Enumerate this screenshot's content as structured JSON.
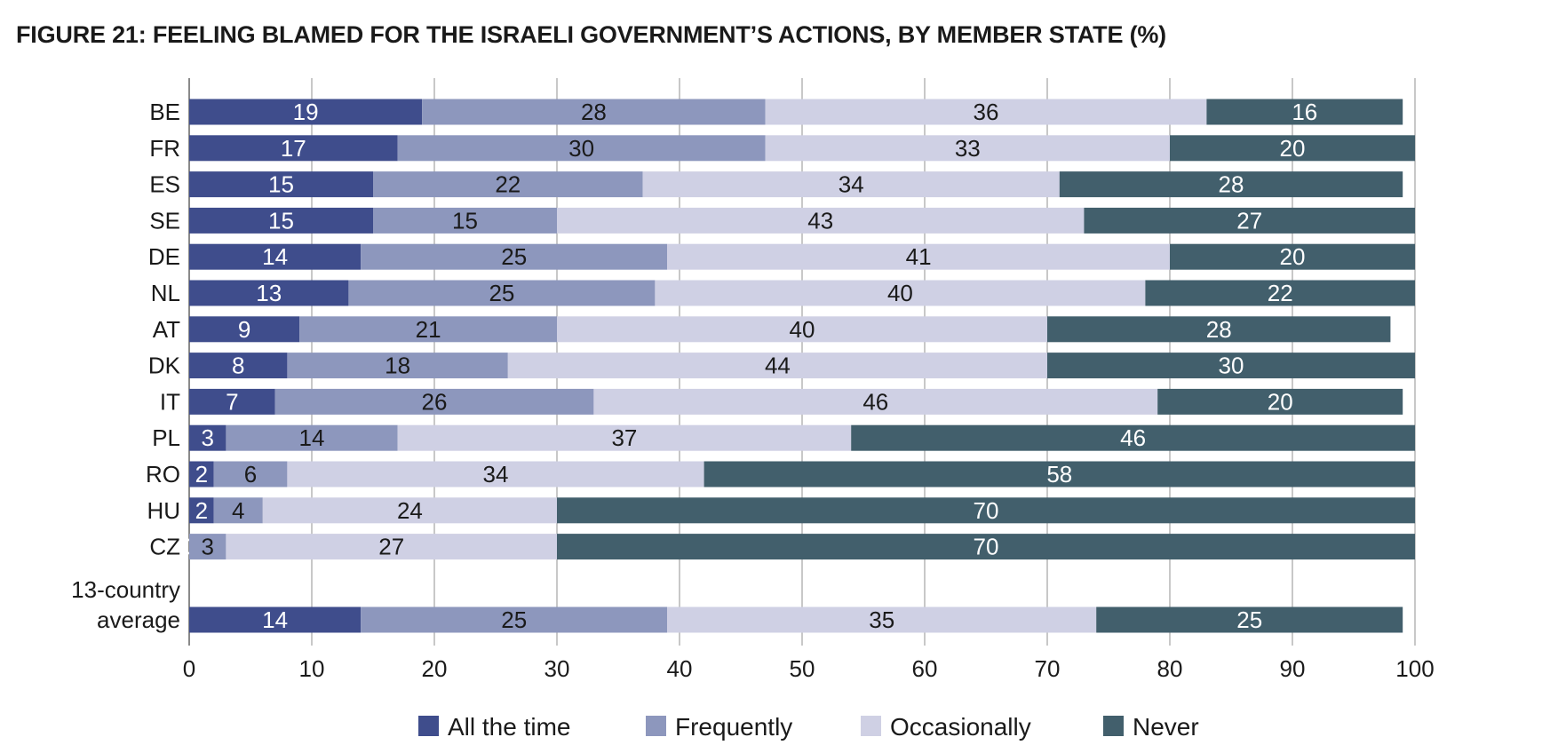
{
  "title": "FIGURE 21:   FEELING BLAMED FOR THE ISRAELI GOVERNMENT’S ACTIONS, BY MEMBER STATE (%)",
  "chart_data": {
    "type": "bar",
    "orientation": "horizontal",
    "stacked": true,
    "title": "FIGURE 21:   FEELING BLAMED FOR THE ISRAELI GOVERNMENT’S ACTIONS, BY MEMBER STATE (%)",
    "categories": [
      "BE",
      "FR",
      "ES",
      "SE",
      "DE",
      "NL",
      "AT",
      "DK",
      "IT",
      "PL",
      "RO",
      "HU",
      "CZ",
      "13-country average"
    ],
    "series": [
      {
        "name": "All the time",
        "color": "#3f4d8c",
        "values": [
          19,
          17,
          15,
          15,
          14,
          13,
          9,
          8,
          7,
          3,
          2,
          2,
          0,
          14
        ]
      },
      {
        "name": "Frequently",
        "color": "#8d97bd",
        "values": [
          28,
          30,
          22,
          15,
          25,
          25,
          21,
          18,
          26,
          14,
          6,
          4,
          3,
          25
        ]
      },
      {
        "name": "Occasionally",
        "color": "#cfd0e4",
        "values": [
          36,
          33,
          34,
          43,
          41,
          40,
          40,
          44,
          46,
          37,
          34,
          24,
          27,
          35
        ]
      },
      {
        "name": "Never",
        "color": "#425f6c",
        "values": [
          16,
          20,
          28,
          27,
          20,
          22,
          28,
          30,
          20,
          46,
          58,
          70,
          70,
          25
        ]
      }
    ],
    "xlim": [
      0,
      100
    ],
    "xticks": [
      0,
      10,
      20,
      30,
      40,
      50,
      60,
      70,
      80,
      90,
      100
    ],
    "grid": true,
    "legend_position": "bottom"
  }
}
